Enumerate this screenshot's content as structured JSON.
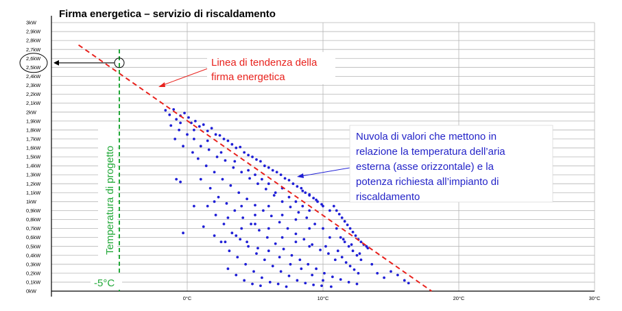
{
  "chart_data": {
    "type": "scatter",
    "title": "Firma energetica – servizio di riscaldamento",
    "xlabel": "",
    "ylabel": "",
    "xlim": [
      -10,
      30
    ],
    "ylim": [
      0,
      3
    ],
    "grid": true,
    "y_ticks": [
      {
        "value": 3.0,
        "label": "3kW"
      },
      {
        "value": 2.9,
        "label": "2,9kW"
      },
      {
        "value": 2.8,
        "label": "2,8kW"
      },
      {
        "value": 2.7,
        "label": "2,7kW"
      },
      {
        "value": 2.6,
        "label": "2,6kW"
      },
      {
        "value": 2.5,
        "label": "2,5kW"
      },
      {
        "value": 2.4,
        "label": "2,4kW"
      },
      {
        "value": 2.3,
        "label": "2,3kW"
      },
      {
        "value": 2.2,
        "label": "2,2kW"
      },
      {
        "value": 2.1,
        "label": "2,1kW"
      },
      {
        "value": 2.0,
        "label": "2kW"
      },
      {
        "value": 1.9,
        "label": "1,9kW"
      },
      {
        "value": 1.8,
        "label": "1,8kW"
      },
      {
        "value": 1.7,
        "label": "1,7kW"
      },
      {
        "value": 1.6,
        "label": "1,6kW"
      },
      {
        "value": 1.5,
        "label": "1,5kW"
      },
      {
        "value": 1.4,
        "label": "1,4kW"
      },
      {
        "value": 1.3,
        "label": "1,3kW"
      },
      {
        "value": 1.2,
        "label": "1,2kW"
      },
      {
        "value": 1.1,
        "label": "1,1kW"
      },
      {
        "value": 1.0,
        "label": "1kW"
      },
      {
        "value": 0.9,
        "label": "0,9kW"
      },
      {
        "value": 0.8,
        "label": "0,8kW"
      },
      {
        "value": 0.7,
        "label": "0,7kW"
      },
      {
        "value": 0.6,
        "label": "0,6kW"
      },
      {
        "value": 0.5,
        "label": "0,5kW"
      },
      {
        "value": 0.4,
        "label": "0,4kW"
      },
      {
        "value": 0.3,
        "label": "0,3kW"
      },
      {
        "value": 0.2,
        "label": "0,2kW"
      },
      {
        "value": 0.1,
        "label": "0,1kW"
      },
      {
        "value": 0.0,
        "label": "0kW"
      }
    ],
    "x_ticks": [
      {
        "value": 0,
        "label": "0°C"
      },
      {
        "value": 10,
        "label": "10°C"
      },
      {
        "value": 20,
        "label": "20°C"
      },
      {
        "value": 30,
        "label": "30°C"
      }
    ],
    "series": [
      {
        "color": "#1f1fd6",
        "points": [
          [
            -1.6,
            2.02
          ],
          [
            -1.3,
            1.97
          ],
          [
            -1.0,
            2.03
          ],
          [
            -0.8,
            1.92
          ],
          [
            -0.5,
            1.96
          ],
          [
            -0.2,
            1.99
          ],
          [
            0.1,
            1.94
          ],
          [
            0.3,
            1.88
          ],
          [
            0.6,
            1.9
          ],
          [
            0.9,
            1.84
          ],
          [
            1.2,
            1.86
          ],
          [
            1.5,
            1.79
          ],
          [
            1.8,
            1.82
          ],
          [
            2.1,
            1.75
          ],
          [
            2.4,
            1.74
          ],
          [
            2.7,
            1.7
          ],
          [
            3.0,
            1.68
          ],
          [
            3.3,
            1.64
          ],
          [
            3.6,
            1.6
          ],
          [
            3.9,
            1.61
          ],
          [
            4.2,
            1.55
          ],
          [
            4.5,
            1.52
          ],
          [
            4.8,
            1.5
          ],
          [
            5.1,
            1.47
          ],
          [
            5.4,
            1.45
          ],
          [
            5.7,
            1.4
          ],
          [
            6.0,
            1.38
          ],
          [
            6.3,
            1.35
          ],
          [
            6.6,
            1.33
          ],
          [
            6.9,
            1.3
          ],
          [
            7.2,
            1.26
          ],
          [
            7.5,
            1.24
          ],
          [
            7.8,
            1.2
          ],
          [
            8.1,
            1.17
          ],
          [
            8.4,
            1.15
          ],
          [
            8.7,
            1.1
          ],
          [
            9.0,
            1.07
          ],
          [
            9.3,
            1.04
          ],
          [
            9.6,
            1.0
          ],
          [
            9.9,
            0.97
          ],
          [
            -1.2,
            1.85
          ],
          [
            -0.6,
            1.8
          ],
          [
            0.0,
            1.75
          ],
          [
            0.5,
            1.7
          ],
          [
            1.0,
            1.62
          ],
          [
            1.6,
            1.58
          ],
          [
            2.2,
            1.5
          ],
          [
            2.8,
            1.46
          ],
          [
            3.4,
            1.38
          ],
          [
            4.0,
            1.33
          ],
          [
            4.6,
            1.26
          ],
          [
            5.2,
            1.2
          ],
          [
            5.8,
            1.14
          ],
          [
            6.4,
            1.07
          ],
          [
            7.0,
            1.0
          ],
          [
            7.6,
            0.94
          ],
          [
            8.2,
            0.88
          ],
          [
            8.8,
            0.82
          ],
          [
            9.4,
            0.75
          ],
          [
            10.0,
            0.7
          ],
          [
            -0.9,
            1.7
          ],
          [
            -0.3,
            1.62
          ],
          [
            0.4,
            1.55
          ],
          [
            0.8,
            1.48
          ],
          [
            1.4,
            1.4
          ],
          [
            2.0,
            1.33
          ],
          [
            2.6,
            1.25
          ],
          [
            3.2,
            1.18
          ],
          [
            3.8,
            1.1
          ],
          [
            4.4,
            1.03
          ],
          [
            5.0,
            0.96
          ],
          [
            5.6,
            0.9
          ],
          [
            6.2,
            0.84
          ],
          [
            6.8,
            0.77
          ],
          [
            7.4,
            0.7
          ],
          [
            8.0,
            0.64
          ],
          [
            8.6,
            0.58
          ],
          [
            9.2,
            0.52
          ],
          [
            9.8,
            0.46
          ],
          [
            10.4,
            0.42
          ],
          [
            1.0,
            1.25
          ],
          [
            1.7,
            1.15
          ],
          [
            2.3,
            1.05
          ],
          [
            2.9,
            0.98
          ],
          [
            3.5,
            0.9
          ],
          [
            4.1,
            0.82
          ],
          [
            4.7,
            0.75
          ],
          [
            5.3,
            0.68
          ],
          [
            5.9,
            0.6
          ],
          [
            6.5,
            0.53
          ],
          [
            7.1,
            0.47
          ],
          [
            7.7,
            0.4
          ],
          [
            8.3,
            0.35
          ],
          [
            8.9,
            0.3
          ],
          [
            9.5,
            0.25
          ],
          [
            10.1,
            0.2
          ],
          [
            10.7,
            0.16
          ],
          [
            11.3,
            0.13
          ],
          [
            11.9,
            0.1
          ],
          [
            12.5,
            0.08
          ],
          [
            1.5,
            0.95
          ],
          [
            2.1,
            0.85
          ],
          [
            2.7,
            0.75
          ],
          [
            3.3,
            0.65
          ],
          [
            3.9,
            0.58
          ],
          [
            4.5,
            0.5
          ],
          [
            5.1,
            0.42
          ],
          [
            5.7,
            0.35
          ],
          [
            6.3,
            0.28
          ],
          [
            6.9,
            0.22
          ],
          [
            7.5,
            0.17
          ],
          [
            8.1,
            0.12
          ],
          [
            8.7,
            0.09
          ],
          [
            9.3,
            0.07
          ],
          [
            2.5,
            0.55
          ],
          [
            3.1,
            0.45
          ],
          [
            3.7,
            0.38
          ],
          [
            4.3,
            0.3
          ],
          [
            4.9,
            0.22
          ],
          [
            5.5,
            0.15
          ],
          [
            6.1,
            0.1
          ],
          [
            6.7,
            0.08
          ],
          [
            3.0,
            0.25
          ],
          [
            3.6,
            0.18
          ],
          [
            4.2,
            0.12
          ],
          [
            4.8,
            0.08
          ],
          [
            5.4,
            0.06
          ],
          [
            7.3,
            0.05
          ],
          [
            9.9,
            0.06
          ],
          [
            10.6,
            0.05
          ],
          [
            10.8,
            0.95
          ],
          [
            11.0,
            0.9
          ],
          [
            11.2,
            0.86
          ],
          [
            11.4,
            0.82
          ],
          [
            11.6,
            0.78
          ],
          [
            11.8,
            0.74
          ],
          [
            12.0,
            0.7
          ],
          [
            12.2,
            0.66
          ],
          [
            12.4,
            0.62
          ],
          [
            12.6,
            0.58
          ],
          [
            12.8,
            0.55
          ],
          [
            13.0,
            0.52
          ],
          [
            13.2,
            0.5
          ],
          [
            11.0,
            0.7
          ],
          [
            11.3,
            0.6
          ],
          [
            11.6,
            0.55
          ],
          [
            11.9,
            0.5
          ],
          [
            12.2,
            0.45
          ],
          [
            12.5,
            0.4
          ],
          [
            12.8,
            0.35
          ],
          [
            11.1,
            0.45
          ],
          [
            11.4,
            0.38
          ],
          [
            11.7,
            0.32
          ],
          [
            12.0,
            0.28
          ],
          [
            12.3,
            0.24
          ],
          [
            12.6,
            0.2
          ],
          [
            11.5,
            0.58
          ],
          [
            12.1,
            0.52
          ],
          [
            12.7,
            0.42
          ],
          [
            13.3,
            0.48
          ],
          [
            10.5,
            0.6
          ],
          [
            10.2,
            0.5
          ],
          [
            10.9,
            0.35
          ],
          [
            13.6,
            0.3
          ],
          [
            14.0,
            0.2
          ],
          [
            14.5,
            0.15
          ],
          [
            15.0,
            0.22
          ],
          [
            15.5,
            0.18
          ],
          [
            16.0,
            0.12
          ],
          [
            16.3,
            0.09
          ],
          [
            6.0,
            1.2
          ],
          [
            6.5,
            1.1
          ],
          [
            7.0,
            1.15
          ],
          [
            7.5,
            1.05
          ],
          [
            8.0,
            1.0
          ],
          [
            8.5,
            0.95
          ],
          [
            9.0,
            0.9
          ],
          [
            5.5,
            1.25
          ],
          [
            5.0,
            1.3
          ],
          [
            4.5,
            1.35
          ],
          [
            3.5,
            1.45
          ],
          [
            2.5,
            1.55
          ],
          [
            1.5,
            1.68
          ],
          [
            0.5,
            1.8
          ],
          [
            -0.5,
            1.88
          ],
          [
            8.5,
            1.12
          ],
          [
            9.0,
            1.08
          ],
          [
            9.5,
            1.02
          ],
          [
            10.0,
            0.95
          ],
          [
            10.5,
            0.9
          ],
          [
            -0.8,
            1.25
          ],
          [
            -0.5,
            1.22
          ],
          [
            -0.3,
            0.65
          ],
          [
            0.5,
            0.95
          ],
          [
            1.2,
            0.72
          ],
          [
            2.0,
            0.62
          ],
          [
            2.8,
            0.55
          ],
          [
            3.6,
            0.62
          ],
          [
            4.4,
            0.55
          ],
          [
            5.2,
            0.48
          ],
          [
            6.0,
            0.45
          ],
          [
            6.8,
            0.38
          ],
          [
            7.6,
            0.3
          ],
          [
            8.4,
            0.25
          ],
          [
            9.2,
            0.18
          ],
          [
            10.0,
            0.12
          ],
          [
            4.0,
            0.7
          ],
          [
            5.0,
            0.75
          ],
          [
            6.0,
            0.7
          ],
          [
            7.0,
            0.6
          ],
          [
            8.0,
            0.55
          ],
          [
            9.0,
            0.5
          ],
          [
            2.0,
            1.0
          ],
          [
            3.0,
            0.82
          ],
          [
            4.0,
            0.95
          ],
          [
            5.0,
            0.85
          ],
          [
            6.0,
            0.95
          ],
          [
            7.0,
            0.85
          ],
          [
            8.0,
            0.8
          ],
          [
            9.0,
            0.7
          ]
        ]
      }
    ],
    "trendline": {
      "x": [
        -8,
        18
      ],
      "y": [
        2.75,
        0.0
      ],
      "color": "#e8211c",
      "style": "dashed"
    },
    "design_temperature": {
      "x": -5,
      "y": 2.55,
      "color": "#21a838",
      "style": "dashed"
    },
    "annotations": {
      "trend": "Linea di tendenza della firma energetica",
      "trend_lines": [
        "Linea di tendenza della",
        "firma energetica"
      ],
      "cloud_lines": [
        "Nuvola di valori che mettono in",
        "relazione la temperatura dell’aria",
        "esterna (asse orizzontale) e la",
        "potenza richiesta all’impianto di",
        "riscaldamento"
      ],
      "design_temp_label": "Temperatura di progetto",
      "design_temp_value": "-5°C"
    }
  },
  "colors": {
    "points": "#1f1fd6",
    "trend": "#e8211c",
    "design": "#21a838",
    "grid": "#b4b4b4"
  }
}
